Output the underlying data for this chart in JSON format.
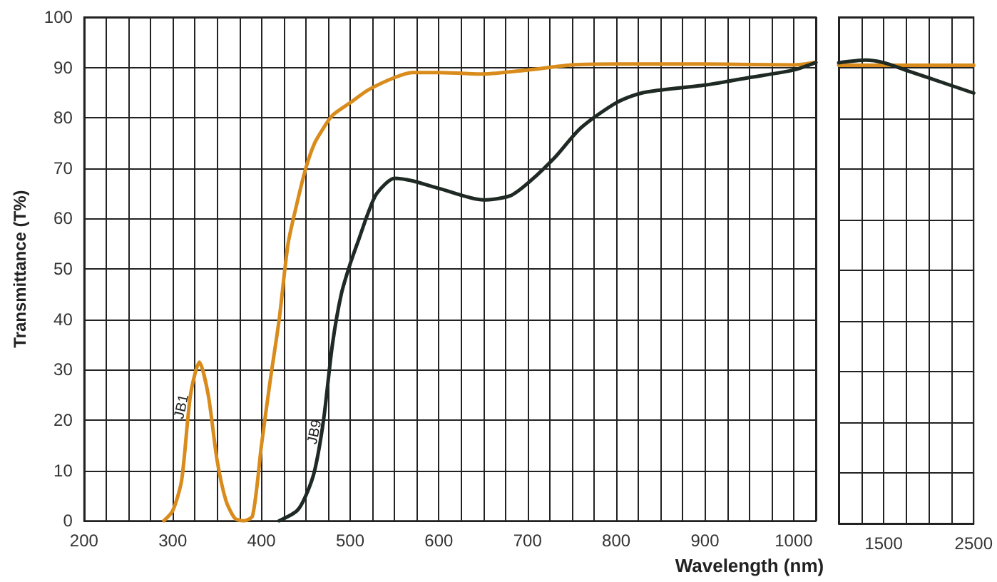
{
  "chart_data": [
    {
      "type": "line",
      "xlabel": "Wavelength (nm)",
      "ylabel": "Transmittance (T%)",
      "xlim": [
        200,
        1025
      ],
      "xticks": [
        200,
        {
          "value": 225,
          "label": null
        },
        {
          "value": 250,
          "label": null
        },
        {
          "value": 275,
          "label": null
        },
        300,
        {
          "value": 325,
          "label": null
        },
        {
          "value": 350,
          "label": null
        },
        {
          "value": 375,
          "label": null
        },
        400,
        {
          "value": 425,
          "label": null
        },
        {
          "value": 450,
          "label": null
        },
        {
          "value": 475,
          "label": null
        },
        500,
        {
          "value": 525,
          "label": null
        },
        {
          "value": 550,
          "label": null
        },
        {
          "value": 575,
          "label": null
        },
        600,
        {
          "value": 625,
          "label": null
        },
        {
          "value": 650,
          "label": null
        },
        {
          "value": 675,
          "label": null
        },
        700,
        {
          "value": 725,
          "label": null
        },
        {
          "value": 750,
          "label": null
        },
        {
          "value": 775,
          "label": null
        },
        800,
        {
          "value": 825,
          "label": null
        },
        {
          "value": 850,
          "label": null
        },
        {
          "value": 875,
          "label": null
        },
        900,
        {
          "value": 925,
          "label": null
        },
        {
          "value": 950,
          "label": null
        },
        {
          "value": 975,
          "label": null
        },
        1000,
        {
          "value": 1025,
          "label": null
        }
      ],
      "ylim": [
        0,
        100
      ],
      "yticks": [
        0,
        10,
        20,
        30,
        40,
        50,
        60,
        70,
        80,
        90,
        100
      ],
      "grid": true,
      "legend": false,
      "marker": "none",
      "line_style": "solid",
      "series": [
        {
          "name": "JB1",
          "color": "#d98c1c",
          "x": [
            290,
            300,
            310,
            320,
            330,
            340,
            350,
            360,
            370,
            380,
            390,
            400,
            410,
            420,
            430,
            440,
            450,
            460,
            470,
            480,
            500,
            520,
            550,
            570,
            600,
            650,
            700,
            750,
            800,
            900,
            1000,
            1025
          ],
          "values": [
            0,
            2,
            8,
            25,
            31.5,
            25,
            12,
            4,
            0.5,
            0,
            1,
            15,
            28,
            40,
            55,
            63,
            70,
            75,
            78,
            80.5,
            83,
            85.5,
            88,
            89,
            89,
            88.7,
            89.5,
            90.5,
            90.7,
            90.7,
            90.5,
            91
          ]
        },
        {
          "name": "JB9",
          "color": "#1f2a24",
          "x": [
            420,
            440,
            450,
            460,
            470,
            480,
            490,
            500,
            510,
            520,
            530,
            550,
            570,
            600,
            650,
            680,
            700,
            730,
            760,
            800,
            830,
            900,
            950,
            1000,
            1025
          ],
          "values": [
            0,
            2,
            5,
            10,
            20,
            35,
            45,
            51,
            56,
            61,
            65,
            68,
            67.5,
            66,
            63.7,
            64.5,
            67,
            72,
            78,
            83,
            85,
            86.5,
            88,
            89.5,
            91
          ]
        }
      ]
    },
    {
      "type": "line",
      "xlim": [
        1000,
        2500
      ],
      "xticks": [
        {
          "value": 1000,
          "label": null
        },
        {
          "value": 1250,
          "label": null
        },
        1500,
        {
          "value": 1750,
          "label": null
        },
        {
          "value": 2000,
          "label": null
        },
        {
          "value": 2250,
          "label": null
        },
        2500
      ],
      "ylim": [
        0,
        100
      ],
      "yticks": [
        {
          "value": 0,
          "label": null
        },
        {
          "value": 10,
          "label": null
        },
        {
          "value": 20,
          "label": null
        },
        {
          "value": 30,
          "label": null
        },
        {
          "value": 40,
          "label": null
        },
        {
          "value": 50,
          "label": null
        },
        {
          "value": 60,
          "label": null
        },
        {
          "value": 70,
          "label": null
        },
        {
          "value": 80,
          "label": null
        },
        {
          "value": 90,
          "label": null
        },
        {
          "value": 100,
          "label": null
        }
      ],
      "tick_labels": "x",
      "grid": true,
      "legend": false,
      "marker": "none",
      "line_style": "solid",
      "series": [
        {
          "color": "#d98c1c",
          "x": [
            1000,
            1500,
            2000,
            2500
          ],
          "values": [
            90.5,
            90.5,
            90.5,
            90.5
          ]
        },
        {
          "color": "#1f2a24",
          "x": [
            1000,
            1300,
            1500,
            1750,
            2000,
            2500
          ],
          "values": [
            91,
            91.5,
            91,
            89.5,
            88,
            85
          ]
        }
      ]
    }
  ]
}
